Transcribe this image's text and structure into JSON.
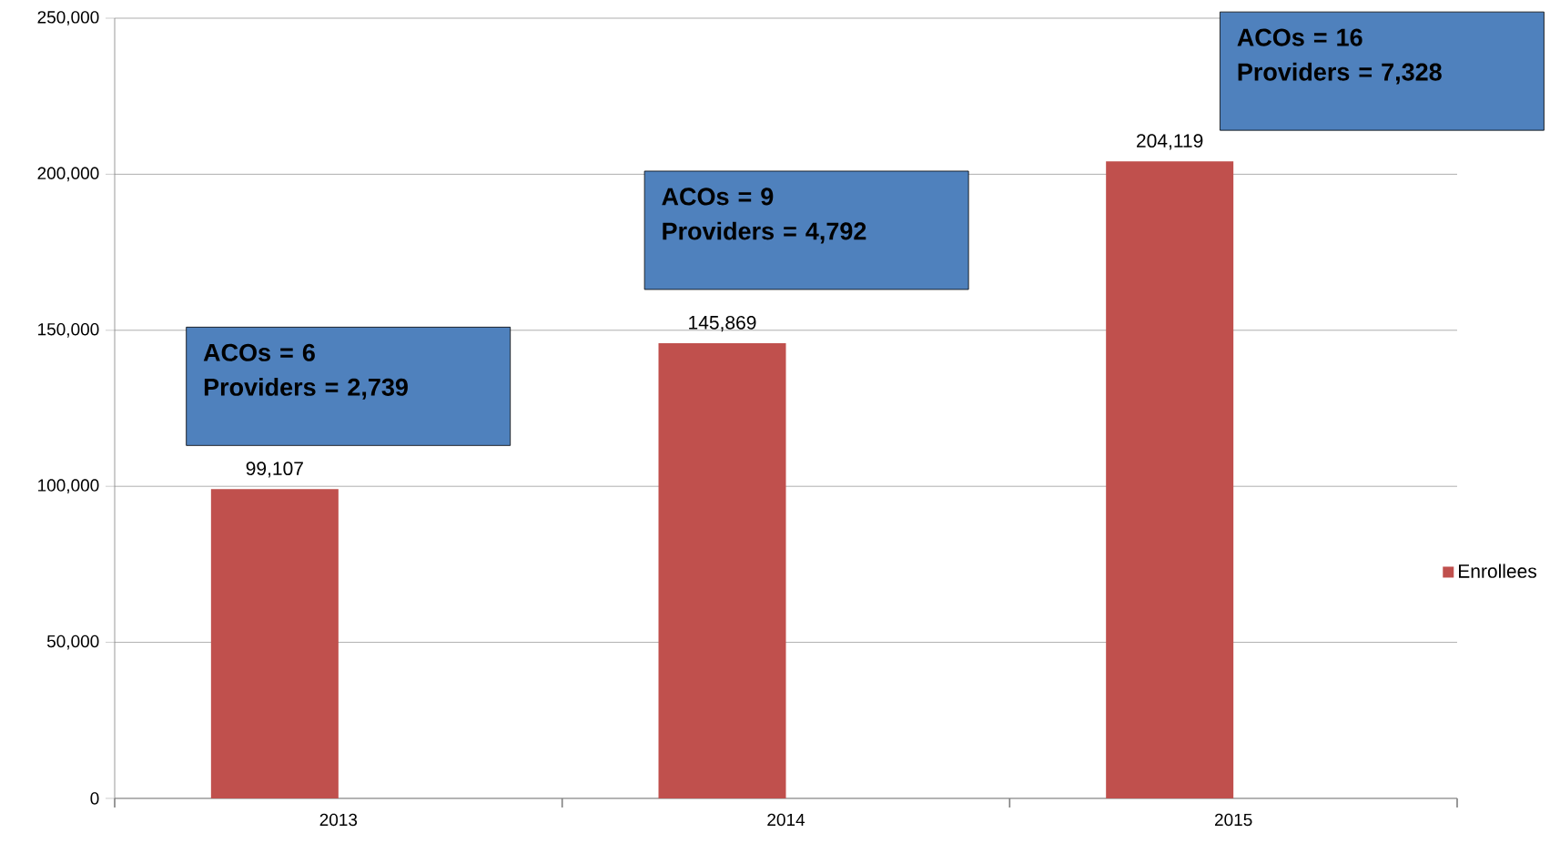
{
  "chart_data": {
    "type": "bar",
    "categories": [
      "2013",
      "2014",
      "2015"
    ],
    "series": [
      {
        "name": "Enrollees",
        "color": "#c0504d",
        "values": [
          99107,
          145869,
          204119
        ],
        "value_labels": [
          "99,107",
          "145,869",
          "204,119"
        ]
      }
    ],
    "ylim": [
      0,
      250000
    ],
    "yticks": [
      {
        "value": 0,
        "label": "0"
      },
      {
        "value": 50000,
        "label": "50,000"
      },
      {
        "value": 100000,
        "label": "100,000"
      },
      {
        "value": 150000,
        "label": "150,000"
      },
      {
        "value": 200000,
        "label": "200,000"
      },
      {
        "value": 250000,
        "label": "250,000"
      }
    ],
    "grid": "y",
    "legend": "right",
    "annotations": [
      "ACOs = 6",
      "Providers = 2,739",
      "ACOs = 9",
      "Providers = 4,792",
      "ACOs = 16",
      "Providers = 7,328"
    ]
  }
}
